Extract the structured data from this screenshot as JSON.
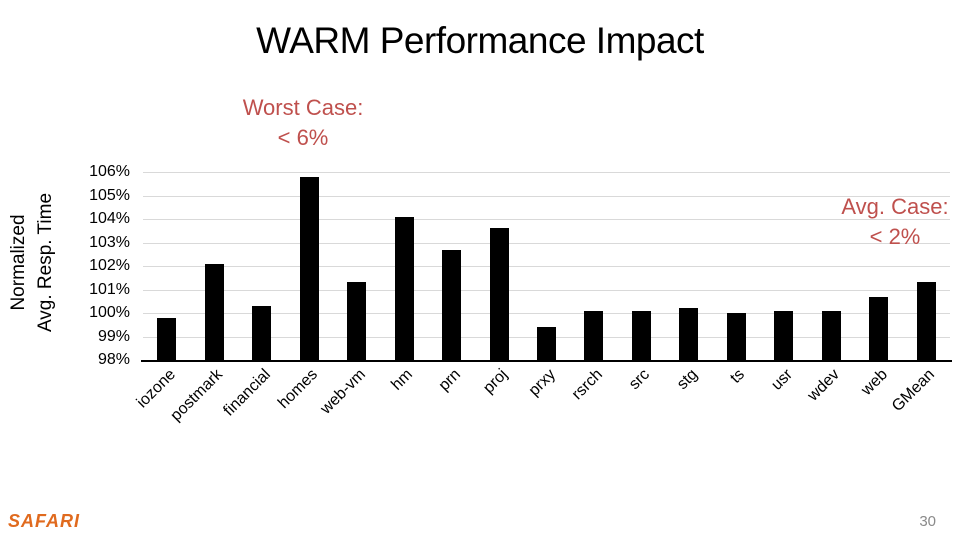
{
  "slide": {
    "title": "WARM Performance Impact",
    "page_number": "30",
    "logo_text": "SAFARI",
    "logo_color": "#e06a1e"
  },
  "annotations": {
    "worst_case": {
      "line1": "Worst Case:",
      "line2": "< 6%",
      "color": "#bf504d"
    },
    "avg_case": {
      "line1": "Avg. Case:",
      "line2": "< 2%",
      "color": "#bf504d"
    }
  },
  "chart_data": {
    "type": "bar",
    "title": "",
    "ylabel_line1": "Normalized",
    "ylabel_line2": "Avg. Resp. Time",
    "categories": [
      "iozone",
      "postmark",
      "financial",
      "homes",
      "web-vm",
      "hm",
      "prn",
      "proj",
      "prxy",
      "rsrch",
      "src",
      "stg",
      "ts",
      "usr",
      "wdev",
      "web",
      "GMean"
    ],
    "values": [
      99.8,
      102.1,
      100.3,
      105.8,
      101.3,
      104.1,
      102.7,
      103.6,
      99.4,
      100.1,
      100.1,
      100.2,
      100.0,
      100.1,
      100.1,
      100.7,
      101.3
    ],
    "unit": "%",
    "ylim": [
      98,
      106
    ],
    "ytick_step": 1,
    "yticks": [
      "106%",
      "105%",
      "104%",
      "103%",
      "102%",
      "101%",
      "100%",
      "99%",
      "98%"
    ],
    "grid": "horizontal",
    "gridline_color": "#d9d9d9",
    "bar_color": "#000000",
    "axis_color": "#000000",
    "legend": "none"
  }
}
